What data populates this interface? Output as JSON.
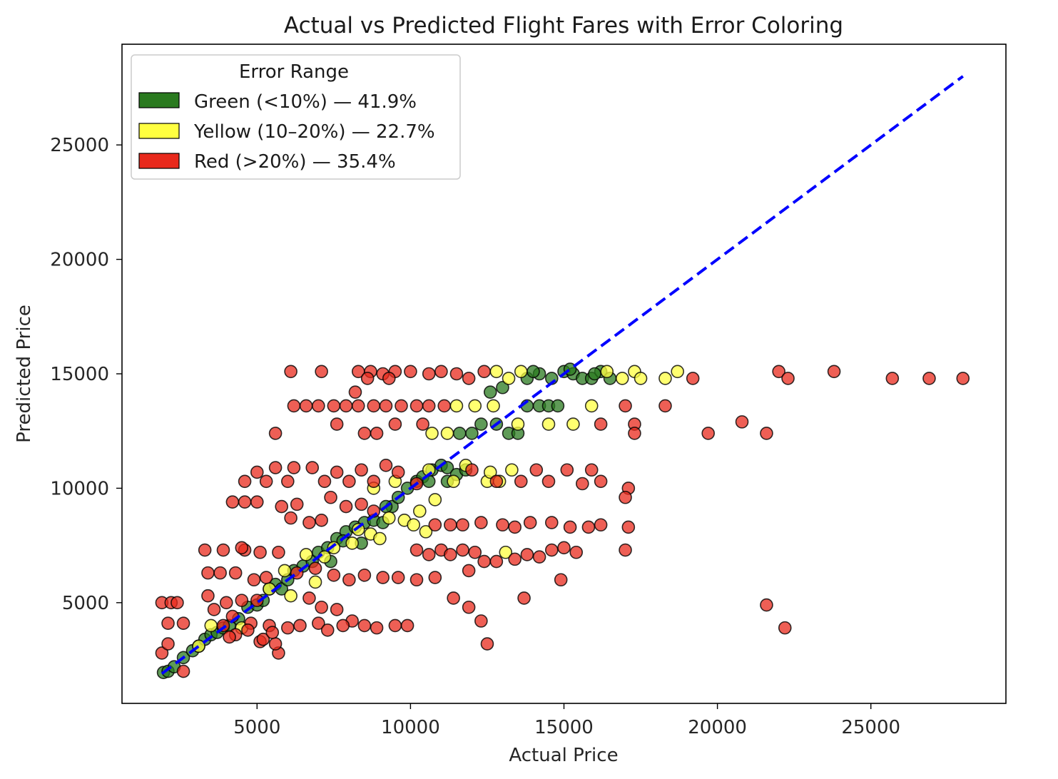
{
  "chart_data": {
    "type": "scatter",
    "title": "Actual vs Predicted Flight Fares with Error Coloring",
    "xlabel": "Actual Price",
    "ylabel": "Predicted Price",
    "xlim": [
      600,
      29400
    ],
    "ylim": [
      600,
      29400
    ],
    "x_ticks": [
      5000,
      10000,
      15000,
      20000,
      25000
    ],
    "y_ticks": [
      5000,
      10000,
      15000,
      20000,
      25000
    ],
    "grid": false,
    "reference_line": {
      "style": "dashed",
      "color": "#0000ff",
      "from": [
        1900,
        1900
      ],
      "to": [
        28000,
        28000
      ]
    },
    "legend": {
      "title": "Error Range",
      "placement": "upper-left",
      "entries": [
        {
          "label": "Green (<10%) — 41.9%",
          "color": "#2a7a1f"
        },
        {
          "label": "Yellow (10–20%) — 22.7%",
          "color": "#ffff40"
        },
        {
          "label": "Red (>20%) — 35.4%",
          "color": "#e8291c"
        }
      ]
    },
    "series": [
      {
        "name": "Green (<10%) — 41.9%",
        "color": "#2a7a1f",
        "points": [
          [
            1950,
            1950
          ],
          [
            2100,
            2000
          ],
          [
            2300,
            2200
          ],
          [
            2600,
            2600
          ],
          [
            2900,
            2900
          ],
          [
            3100,
            3100
          ],
          [
            3300,
            3400
          ],
          [
            3500,
            3600
          ],
          [
            3700,
            3700
          ],
          [
            3900,
            3900
          ],
          [
            4100,
            4000
          ],
          [
            4400,
            4300
          ],
          [
            4700,
            4800
          ],
          [
            5000,
            4900
          ],
          [
            5200,
            5100
          ],
          [
            5400,
            5600
          ],
          [
            5600,
            5800
          ],
          [
            5800,
            5600
          ],
          [
            6000,
            6000
          ],
          [
            6200,
            6400
          ],
          [
            6500,
            6600
          ],
          [
            6800,
            6800
          ],
          [
            7000,
            7200
          ],
          [
            7300,
            7400
          ],
          [
            7600,
            7800
          ],
          [
            7900,
            8100
          ],
          [
            8200,
            8300
          ],
          [
            8500,
            8500
          ],
          [
            8800,
            8600
          ],
          [
            9100,
            8500
          ],
          [
            9400,
            9200
          ],
          [
            9600,
            9600
          ],
          [
            9900,
            10000
          ],
          [
            10200,
            10300
          ],
          [
            10400,
            10500
          ],
          [
            10700,
            10800
          ],
          [
            11000,
            11000
          ],
          [
            11200,
            10900
          ],
          [
            11500,
            10600
          ],
          [
            11800,
            10800
          ],
          [
            10600,
            10300
          ],
          [
            11200,
            10300
          ],
          [
            11600,
            12400
          ],
          [
            12000,
            12400
          ],
          [
            12300,
            12800
          ],
          [
            12800,
            12800
          ],
          [
            12600,
            14200
          ],
          [
            13000,
            14400
          ],
          [
            13200,
            12400
          ],
          [
            13500,
            12400
          ],
          [
            13800,
            13600
          ],
          [
            14200,
            13600
          ],
          [
            14500,
            13600
          ],
          [
            14800,
            13600
          ],
          [
            14200,
            15000
          ],
          [
            14600,
            14800
          ],
          [
            15000,
            15100
          ],
          [
            15300,
            15000
          ],
          [
            15600,
            14800
          ],
          [
            15900,
            14800
          ],
          [
            16200,
            15100
          ],
          [
            16500,
            14800
          ],
          [
            13800,
            14800
          ],
          [
            14000,
            15100
          ],
          [
            15200,
            15200
          ],
          [
            16000,
            15000
          ],
          [
            7400,
            6800
          ],
          [
            7800,
            7700
          ],
          [
            8400,
            7600
          ],
          [
            9200,
            9200
          ]
        ]
      },
      {
        "name": "Yellow (10–20%) — 22.7%",
        "color": "#ffff40",
        "points": [
          [
            3100,
            3100
          ],
          [
            3500,
            4000
          ],
          [
            4500,
            3900
          ],
          [
            5400,
            5600
          ],
          [
            5900,
            6400
          ],
          [
            6100,
            5300
          ],
          [
            6600,
            7100
          ],
          [
            6900,
            5900
          ],
          [
            7200,
            7000
          ],
          [
            7500,
            7400
          ],
          [
            8100,
            7600
          ],
          [
            8300,
            8200
          ],
          [
            8700,
            8000
          ],
          [
            9000,
            7800
          ],
          [
            9300,
            8700
          ],
          [
            9800,
            8600
          ],
          [
            10100,
            8400
          ],
          [
            10500,
            8100
          ],
          [
            10300,
            9000
          ],
          [
            10800,
            9500
          ],
          [
            8800,
            10000
          ],
          [
            9500,
            10300
          ],
          [
            10600,
            10800
          ],
          [
            11400,
            10300
          ],
          [
            11800,
            11000
          ],
          [
            12500,
            10300
          ],
          [
            12900,
            10300
          ],
          [
            13300,
            10800
          ],
          [
            10700,
            12400
          ],
          [
            11200,
            12400
          ],
          [
            11500,
            13600
          ],
          [
            12100,
            13600
          ],
          [
            12700,
            13600
          ],
          [
            13500,
            12800
          ],
          [
            14500,
            12800
          ],
          [
            15300,
            12800
          ],
          [
            15900,
            13600
          ],
          [
            12800,
            15100
          ],
          [
            13200,
            14800
          ],
          [
            13600,
            15100
          ],
          [
            16400,
            15100
          ],
          [
            16900,
            14800
          ],
          [
            17300,
            15100
          ],
          [
            17500,
            14800
          ],
          [
            18300,
            14800
          ],
          [
            18700,
            15100
          ],
          [
            13100,
            7200
          ],
          [
            12600,
            10700
          ]
        ]
      },
      {
        "name": "Red (>20%) — 35.4%",
        "color": "#e8291c",
        "points": [
          [
            1900,
            5000
          ],
          [
            2200,
            5000
          ],
          [
            2400,
            5000
          ],
          [
            2100,
            4100
          ],
          [
            2600,
            4100
          ],
          [
            1900,
            2800
          ],
          [
            2100,
            3200
          ],
          [
            2600,
            2000
          ],
          [
            3400,
            5300
          ],
          [
            3600,
            4700
          ],
          [
            4000,
            5000
          ],
          [
            4500,
            5100
          ],
          [
            5000,
            5100
          ],
          [
            4200,
            4400
          ],
          [
            4800,
            4100
          ],
          [
            5400,
            4000
          ],
          [
            5700,
            2800
          ],
          [
            5100,
            3300
          ],
          [
            5600,
            3200
          ],
          [
            3400,
            6300
          ],
          [
            3800,
            6300
          ],
          [
            4300,
            6300
          ],
          [
            3300,
            7300
          ],
          [
            3900,
            7300
          ],
          [
            4600,
            7300
          ],
          [
            5100,
            7200
          ],
          [
            5700,
            7200
          ],
          [
            4500,
            7400
          ],
          [
            4900,
            6000
          ],
          [
            5300,
            6100
          ],
          [
            4200,
            9400
          ],
          [
            4600,
            9400
          ],
          [
            5000,
            9400
          ],
          [
            5800,
            9200
          ],
          [
            6300,
            9300
          ],
          [
            4600,
            10300
          ],
          [
            5000,
            10700
          ],
          [
            5300,
            10300
          ],
          [
            5600,
            10900
          ],
          [
            6000,
            10300
          ],
          [
            6200,
            10900
          ],
          [
            6800,
            10900
          ],
          [
            7200,
            10300
          ],
          [
            7600,
            10700
          ],
          [
            8000,
            10300
          ],
          [
            8400,
            10800
          ],
          [
            8800,
            10300
          ],
          [
            9200,
            11000
          ],
          [
            9600,
            10700
          ],
          [
            10200,
            10200
          ],
          [
            12000,
            10800
          ],
          [
            12800,
            10300
          ],
          [
            13600,
            10300
          ],
          [
            14100,
            10800
          ],
          [
            14500,
            10300
          ],
          [
            15100,
            10800
          ],
          [
            15600,
            10200
          ],
          [
            15900,
            10800
          ],
          [
            16200,
            10300
          ],
          [
            6100,
            8700
          ],
          [
            6700,
            8500
          ],
          [
            7100,
            8600
          ],
          [
            7400,
            9600
          ],
          [
            7900,
            9200
          ],
          [
            8400,
            9300
          ],
          [
            8800,
            9000
          ],
          [
            10800,
            8400
          ],
          [
            11300,
            8400
          ],
          [
            11700,
            8400
          ],
          [
            12300,
            8500
          ],
          [
            13000,
            8400
          ],
          [
            13400,
            8300
          ],
          [
            13900,
            8500
          ],
          [
            14600,
            8500
          ],
          [
            15200,
            8300
          ],
          [
            15800,
            8300
          ],
          [
            16200,
            8400
          ],
          [
            17100,
            8300
          ],
          [
            10200,
            7300
          ],
          [
            10600,
            7100
          ],
          [
            11000,
            7300
          ],
          [
            11300,
            7100
          ],
          [
            11700,
            7300
          ],
          [
            12100,
            7200
          ],
          [
            12400,
            6800
          ],
          [
            12800,
            6800
          ],
          [
            13400,
            6900
          ],
          [
            13800,
            7100
          ],
          [
            14200,
            7000
          ],
          [
            14600,
            7300
          ],
          [
            15000,
            7400
          ],
          [
            15400,
            7200
          ],
          [
            11900,
            6400
          ],
          [
            10200,
            6000
          ],
          [
            10800,
            6100
          ],
          [
            11400,
            5200
          ],
          [
            11900,
            4800
          ],
          [
            12300,
            4200
          ],
          [
            13700,
            5200
          ],
          [
            14900,
            6000
          ],
          [
            12500,
            3200
          ],
          [
            6700,
            5200
          ],
          [
            7100,
            4800
          ],
          [
            7600,
            4700
          ],
          [
            8100,
            4200
          ],
          [
            8500,
            4000
          ],
          [
            8900,
            3900
          ],
          [
            9500,
            4000
          ],
          [
            9900,
            4000
          ],
          [
            6400,
            4000
          ],
          [
            6000,
            3900
          ],
          [
            7000,
            4100
          ],
          [
            7300,
            3800
          ],
          [
            7800,
            4000
          ],
          [
            6100,
            15100
          ],
          [
            7100,
            15100
          ],
          [
            8300,
            15100
          ],
          [
            8700,
            15100
          ],
          [
            9100,
            15000
          ],
          [
            9500,
            15100
          ],
          [
            10000,
            15100
          ],
          [
            10600,
            15000
          ],
          [
            11000,
            15100
          ],
          [
            11500,
            15000
          ],
          [
            11900,
            14800
          ],
          [
            12400,
            15100
          ],
          [
            8200,
            14200
          ],
          [
            8600,
            14800
          ],
          [
            9300,
            14800
          ],
          [
            6200,
            13600
          ],
          [
            6600,
            13600
          ],
          [
            7000,
            13600
          ],
          [
            7500,
            13600
          ],
          [
            7900,
            13600
          ],
          [
            8300,
            13600
          ],
          [
            8800,
            13600
          ],
          [
            9200,
            13600
          ],
          [
            9700,
            13600
          ],
          [
            10200,
            13600
          ],
          [
            10600,
            13600
          ],
          [
            11100,
            13600
          ],
          [
            5600,
            12400
          ],
          [
            7600,
            12800
          ],
          [
            8500,
            12400
          ],
          [
            8900,
            12400
          ],
          [
            9500,
            12800
          ],
          [
            10400,
            12800
          ],
          [
            17000,
            13600
          ],
          [
            17300,
            12800
          ],
          [
            17300,
            12400
          ],
          [
            18300,
            13600
          ],
          [
            17100,
            10000
          ],
          [
            17000,
            9600
          ],
          [
            17000,
            7300
          ],
          [
            16200,
            12800
          ],
          [
            19200,
            14800
          ],
          [
            19700,
            12400
          ],
          [
            20800,
            12900
          ],
          [
            21600,
            12400
          ],
          [
            22000,
            15100
          ],
          [
            22300,
            14800
          ],
          [
            23800,
            15100
          ],
          [
            25700,
            14800
          ],
          [
            26900,
            14800
          ],
          [
            28000,
            14800
          ],
          [
            21600,
            4900
          ],
          [
            22200,
            3900
          ],
          [
            4300,
            3600
          ],
          [
            4700,
            3800
          ],
          [
            5200,
            3400
          ],
          [
            5500,
            3700
          ],
          [
            3900,
            4000
          ],
          [
            4100,
            3500
          ],
          [
            6300,
            6300
          ],
          [
            6900,
            6500
          ],
          [
            7500,
            6200
          ],
          [
            8000,
            6000
          ],
          [
            8500,
            6200
          ],
          [
            9100,
            6100
          ],
          [
            9600,
            6100
          ]
        ]
      }
    ]
  }
}
